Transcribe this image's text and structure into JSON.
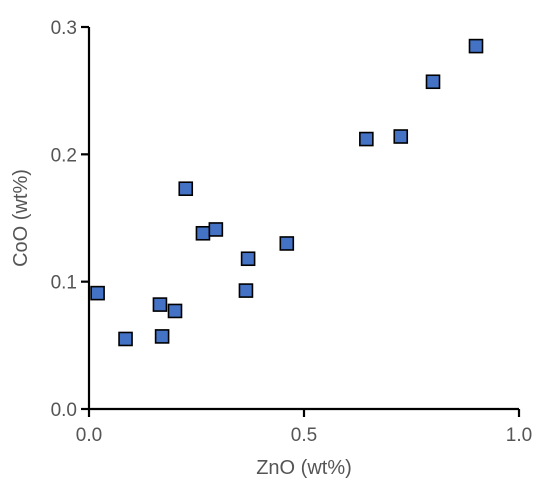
{
  "chart_data": {
    "type": "scatter",
    "title": "",
    "xlabel": "ZnO (wt%)",
    "ylabel": "CoO (wt%)",
    "xlim": [
      0,
      1.0
    ],
    "ylim": [
      0,
      0.3
    ],
    "x_ticks": [
      "0.0",
      "0.5",
      "1.0"
    ],
    "y_ticks": [
      "0.0",
      "0.1",
      "0.2",
      "0.3"
    ],
    "grid": false,
    "marker": "square",
    "marker_color": "#4472c4",
    "x": [
      0.02,
      0.085,
      0.165,
      0.17,
      0.2,
      0.225,
      0.265,
      0.295,
      0.365,
      0.37,
      0.46,
      0.645,
      0.725,
      0.8,
      0.9
    ],
    "y": [
      0.091,
      0.055,
      0.082,
      0.057,
      0.077,
      0.173,
      0.138,
      0.141,
      0.093,
      0.118,
      0.13,
      0.212,
      0.214,
      0.257,
      0.285
    ]
  }
}
